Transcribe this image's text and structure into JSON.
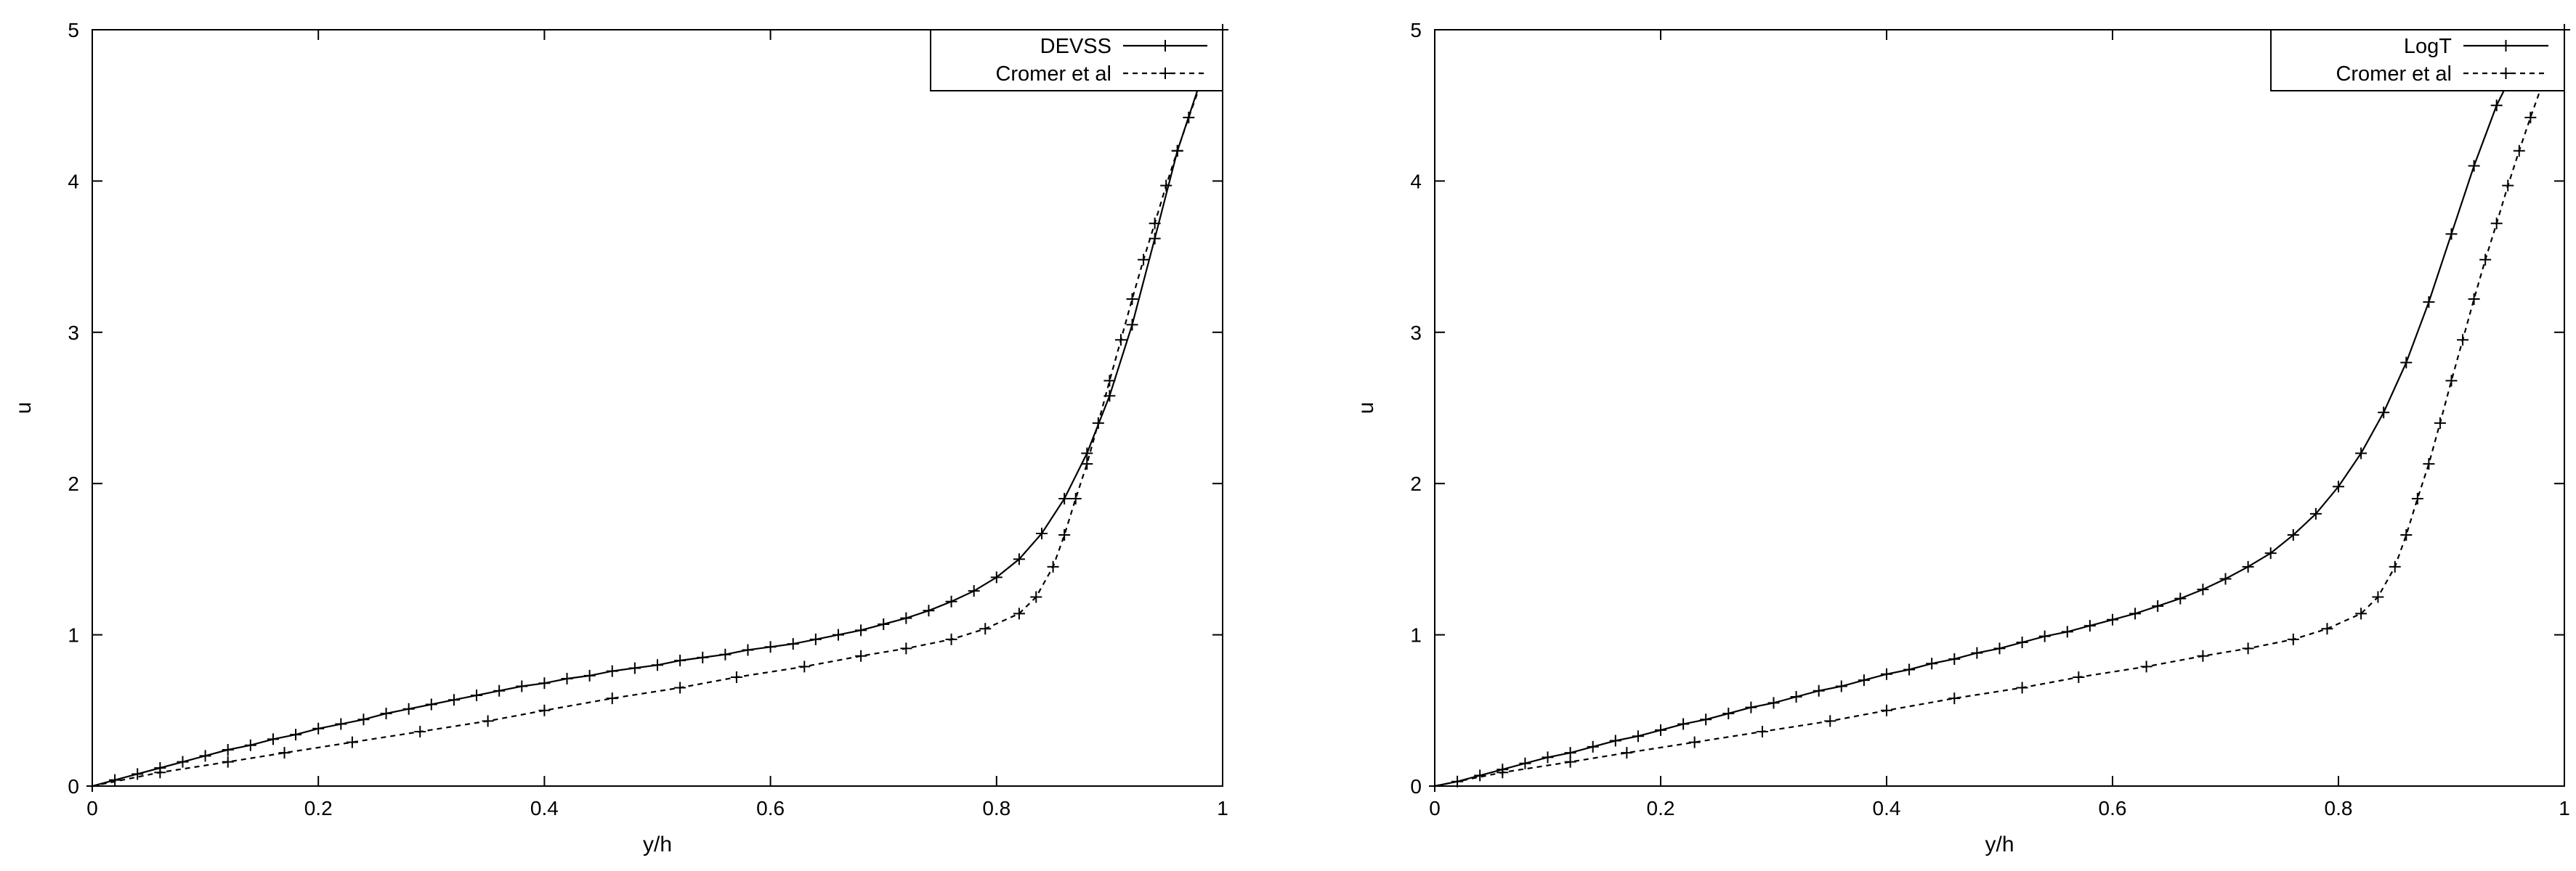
{
  "chart_data": [
    {
      "type": "line",
      "panel": "left",
      "xlabel": "y/h",
      "ylabel": "u",
      "xlim": [
        0,
        1
      ],
      "ylim": [
        0,
        5
      ],
      "xticks": [
        "0",
        "0.2",
        "0.4",
        "0.6",
        "0.8",
        "1"
      ],
      "yticks": [
        "0",
        "1",
        "2",
        "3",
        "4",
        "5"
      ],
      "grid": false,
      "legend_position": "top-right",
      "series": [
        {
          "name": "DEVSS",
          "style": "solid",
          "marker": "+",
          "x": [
            0,
            0.02,
            0.04,
            0.06,
            0.08,
            0.1,
            0.12,
            0.14,
            0.16,
            0.18,
            0.2,
            0.22,
            0.24,
            0.26,
            0.28,
            0.3,
            0.32,
            0.34,
            0.36,
            0.38,
            0.4,
            0.42,
            0.44,
            0.46,
            0.48,
            0.5,
            0.52,
            0.54,
            0.56,
            0.58,
            0.6,
            0.62,
            0.64,
            0.66,
            0.68,
            0.7,
            0.72,
            0.74,
            0.76,
            0.78,
            0.8,
            0.82,
            0.84,
            0.86,
            0.88,
            0.9,
            0.92,
            0.94,
            0.96,
            0.98,
            1.0
          ],
          "y": [
            0,
            0.04,
            0.08,
            0.12,
            0.16,
            0.2,
            0.24,
            0.27,
            0.31,
            0.34,
            0.38,
            0.41,
            0.44,
            0.48,
            0.51,
            0.54,
            0.57,
            0.6,
            0.63,
            0.66,
            0.68,
            0.71,
            0.73,
            0.76,
            0.78,
            0.8,
            0.83,
            0.85,
            0.87,
            0.9,
            0.92,
            0.94,
            0.97,
            1.0,
            1.03,
            1.07,
            1.11,
            1.16,
            1.22,
            1.29,
            1.38,
            1.5,
            1.67,
            1.9,
            2.2,
            2.58,
            3.05,
            3.62,
            4.2,
            4.65,
            5.0
          ]
        },
        {
          "name": "Cromer et al",
          "style": "dashed",
          "marker": "+",
          "x": [
            0,
            0.06,
            0.12,
            0.17,
            0.23,
            0.29,
            0.35,
            0.4,
            0.46,
            0.52,
            0.57,
            0.63,
            0.68,
            0.72,
            0.76,
            0.79,
            0.82,
            0.835,
            0.85,
            0.86,
            0.87,
            0.88,
            0.89,
            0.9,
            0.91,
            0.92,
            0.93,
            0.94,
            0.95,
            0.96,
            0.97,
            0.98,
            0.99,
            1.0
          ],
          "y": [
            0,
            0.09,
            0.16,
            0.22,
            0.29,
            0.36,
            0.43,
            0.5,
            0.58,
            0.65,
            0.72,
            0.79,
            0.86,
            0.91,
            0.97,
            1.04,
            1.14,
            1.25,
            1.45,
            1.66,
            1.9,
            2.13,
            2.4,
            2.68,
            2.95,
            3.22,
            3.48,
            3.72,
            3.97,
            4.2,
            4.42,
            4.63,
            4.82,
            5.0
          ]
        }
      ]
    },
    {
      "type": "line",
      "panel": "right",
      "xlabel": "y/h",
      "ylabel": "u",
      "xlim": [
        0,
        1
      ],
      "ylim": [
        0,
        5
      ],
      "xticks": [
        "0",
        "0.2",
        "0.4",
        "0.6",
        "0.8",
        "1"
      ],
      "yticks": [
        "0",
        "1",
        "2",
        "3",
        "4",
        "5"
      ],
      "grid": false,
      "legend_position": "top-right",
      "series": [
        {
          "name": "LogT",
          "style": "solid",
          "marker": "+",
          "x": [
            0,
            0.02,
            0.04,
            0.06,
            0.08,
            0.1,
            0.12,
            0.14,
            0.16,
            0.18,
            0.2,
            0.22,
            0.24,
            0.26,
            0.28,
            0.3,
            0.32,
            0.34,
            0.36,
            0.38,
            0.4,
            0.42,
            0.44,
            0.46,
            0.48,
            0.5,
            0.52,
            0.54,
            0.56,
            0.58,
            0.6,
            0.62,
            0.64,
            0.66,
            0.68,
            0.7,
            0.72,
            0.74,
            0.76,
            0.78,
            0.8,
            0.82,
            0.84,
            0.86,
            0.88,
            0.9,
            0.92,
            0.94,
            0.96,
            0.98,
            1.0
          ],
          "y": [
            0,
            0.03,
            0.07,
            0.11,
            0.15,
            0.19,
            0.22,
            0.26,
            0.3,
            0.33,
            0.37,
            0.41,
            0.44,
            0.48,
            0.52,
            0.55,
            0.59,
            0.63,
            0.66,
            0.7,
            0.74,
            0.77,
            0.81,
            0.84,
            0.88,
            0.91,
            0.95,
            0.99,
            1.02,
            1.06,
            1.1,
            1.14,
            1.19,
            1.24,
            1.3,
            1.37,
            1.45,
            1.54,
            1.66,
            1.8,
            1.98,
            2.2,
            2.47,
            2.8,
            3.2,
            3.65,
            4.1,
            4.5,
            4.8,
            4.95,
            5.0
          ]
        },
        {
          "name": "Cromer et al",
          "style": "dashed",
          "marker": "+",
          "x": [
            0,
            0.06,
            0.12,
            0.17,
            0.23,
            0.29,
            0.35,
            0.4,
            0.46,
            0.52,
            0.57,
            0.63,
            0.68,
            0.72,
            0.76,
            0.79,
            0.82,
            0.835,
            0.85,
            0.86,
            0.87,
            0.88,
            0.89,
            0.9,
            0.91,
            0.92,
            0.93,
            0.94,
            0.95,
            0.96,
            0.97,
            0.98,
            0.99,
            1.0
          ],
          "y": [
            0,
            0.09,
            0.16,
            0.22,
            0.29,
            0.36,
            0.43,
            0.5,
            0.58,
            0.65,
            0.72,
            0.79,
            0.86,
            0.91,
            0.97,
            1.04,
            1.14,
            1.25,
            1.45,
            1.66,
            1.9,
            2.13,
            2.4,
            2.68,
            2.95,
            3.22,
            3.48,
            3.72,
            3.97,
            4.2,
            4.42,
            4.63,
            4.82,
            5.0
          ]
        }
      ]
    }
  ]
}
